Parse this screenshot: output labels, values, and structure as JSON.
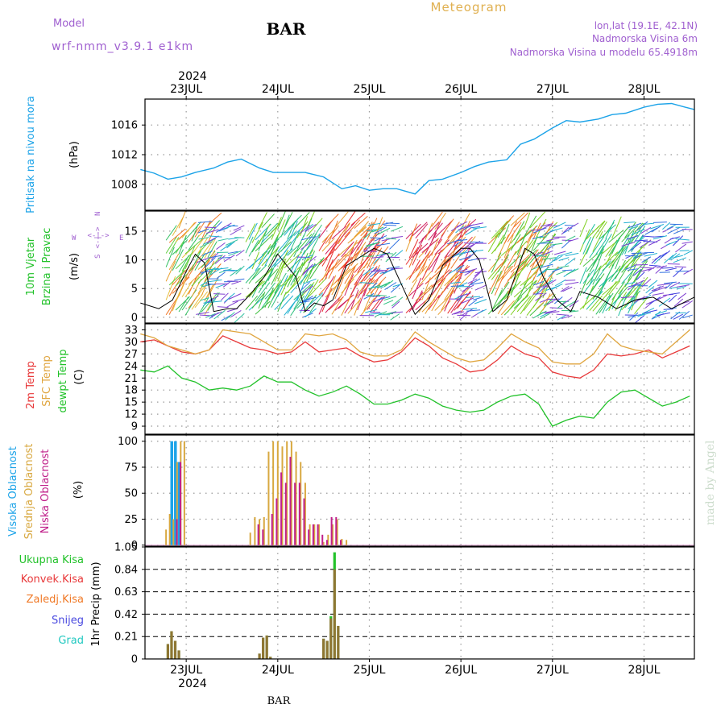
{
  "header": {
    "model_label": "Model",
    "model_name": "wrf-nmm_v3.9.1 e1km",
    "station": "BAR",
    "meteogram_label": "Meteogram",
    "lonlat": "lon,lat (19.1E, 42.1N)",
    "elevation": "Nadmorska Visina 6m",
    "model_elevation": "Nadmorska Visina u modelu 65.4918m",
    "footer_station": "BAR",
    "watermark": "made by Angel"
  },
  "x_axis": {
    "year": "2024",
    "days": [
      "23JUL",
      "24JUL",
      "25JUL",
      "26JUL",
      "27JUL",
      "28JUL"
    ],
    "t_range": [
      -0.45,
      5.55
    ]
  },
  "colors": {
    "pressure": "#1ca3e8",
    "wind_title": "#22c22a",
    "wind_dir": "#a060d0",
    "temp2m": "#e8393a",
    "sfc": "#e0a640",
    "dewpt": "#22c22a",
    "cloud_high": "#1ca3e8",
    "cloud_mid": "#d8a840",
    "cloud_low": "#c0208a",
    "rain_total": "#22c22a",
    "rain_conv": "#e8393a",
    "rain_frozen": "#f07a28",
    "snow": "#4a4ae0",
    "grad": "#20c8c0",
    "axis": "#000000",
    "grid": "#999999"
  },
  "panels": {
    "pressure": {
      "ylabel": "Pritisak na nivou mora",
      "unit": "(hPa)",
      "ylim": [
        1004.5,
        1019.5
      ],
      "ticks": [
        "1008",
        "1012",
        "1016"
      ]
    },
    "wind": {
      "ylabel1": "10m Vjetar",
      "ylabel2": "Brzina i Pravac",
      "unit": "(m/s)",
      "compass_s": "S",
      "compass_w": "W",
      "compass_e": "E",
      "compass_n": "N",
      "compass_arrows": "<-|->",
      "ylim": [
        -1,
        18.5
      ],
      "ticks": [
        "0",
        "5",
        "10",
        "15"
      ]
    },
    "temp": {
      "ylabel_2m": "2m Temp",
      "ylabel_sfc": "SFC Temp",
      "ylabel_dew": "dewpt Temp",
      "unit": "(C)",
      "ylim": [
        7,
        34.5
      ],
      "ticks": [
        "9",
        "12",
        "15",
        "18",
        "21",
        "24",
        "27",
        "30",
        "33"
      ]
    },
    "cloud": {
      "ylabel_high": "Visoka Oblacnost",
      "ylabel_mid": "Srednja Oblacnost",
      "ylabel_low": "Niska Oblacnost",
      "unit": "(%)",
      "ylim": [
        -1,
        106
      ],
      "ticks": [
        "0",
        "25",
        "50",
        "75",
        "100"
      ]
    },
    "precip": {
      "legend_total": "Ukupna Kisa",
      "legend_conv": "Konvek.Kisa",
      "legend_frozen": "Zaledj.Kisa",
      "legend_snow": "Snijeg",
      "legend_grad": "Grad",
      "unit": "1hr Precip (mm)",
      "ylim": [
        0,
        1.05
      ],
      "ticks": [
        "0",
        "0.21",
        "0.42",
        "0.63",
        "0.84",
        "1.05"
      ]
    }
  },
  "chart_data": [
    {
      "type": "line",
      "title": "Pritisak na nivou mora",
      "ylabel": "(hPa)",
      "x": [
        -0.5,
        -0.35,
        -0.2,
        -0.05,
        0.1,
        0.3,
        0.45,
        0.6,
        0.8,
        0.95,
        1.1,
        1.3,
        1.5,
        1.7,
        1.85,
        2.0,
        2.15,
        2.3,
        2.5,
        2.65,
        2.8,
        3.0,
        3.15,
        3.3,
        3.5,
        3.65,
        3.8,
        4.0,
        4.15,
        4.3,
        4.5,
        4.65,
        4.8,
        5.0,
        5.15,
        5.3,
        5.45,
        5.55
      ],
      "y": [
        1010,
        1009.5,
        1008.7,
        1009,
        1009.6,
        1010.2,
        1011,
        1011.4,
        1010.2,
        1009.6,
        1009.6,
        1009.6,
        1009,
        1007.4,
        1007.8,
        1007.2,
        1007.4,
        1007.4,
        1006.7,
        1008.5,
        1008.7,
        1009.6,
        1010.4,
        1011,
        1011.3,
        1013.4,
        1014.1,
        1015.6,
        1016.6,
        1016.4,
        1016.8,
        1017.4,
        1017.6,
        1018.4,
        1018.8,
        1018.9,
        1018.4,
        1018.1
      ]
    },
    {
      "type": "line",
      "title": "10m Vjetar Brzina i Pravac",
      "ylabel": "(m/s)",
      "x": [
        -0.5,
        -0.3,
        -0.15,
        0.0,
        0.1,
        0.2,
        0.3,
        0.45,
        0.55,
        0.7,
        0.85,
        1.0,
        1.2,
        1.3,
        1.4,
        1.5,
        1.6,
        1.75,
        1.9,
        2.05,
        2.2,
        2.4,
        2.5,
        2.65,
        2.8,
        3.0,
        3.1,
        3.2,
        3.35,
        3.5,
        3.7,
        3.8,
        3.9,
        4.05,
        4.2,
        4.3,
        4.5,
        4.7,
        4.9,
        5.1,
        5.3,
        5.55
      ],
      "y": [
        2.5,
        1.5,
        3,
        8,
        11,
        9.5,
        1,
        1.5,
        1.5,
        4,
        7,
        11,
        7,
        1,
        2.5,
        2,
        3,
        9,
        10.5,
        12,
        11,
        4,
        0.5,
        3,
        9,
        12,
        12,
        10,
        1,
        3,
        12,
        11,
        7,
        3,
        1,
        4.5,
        3.5,
        1.5,
        3,
        3.5,
        1.5,
        3.5
      ]
    },
    {
      "type": "line",
      "title": "2m Temp / SFC Temp / dewpt Temp",
      "ylabel": "(C)",
      "x": [
        -0.5,
        -0.35,
        -0.2,
        -0.05,
        0.1,
        0.25,
        0.4,
        0.55,
        0.7,
        0.85,
        1.0,
        1.15,
        1.3,
        1.45,
        1.6,
        1.75,
        1.9,
        2.05,
        2.2,
        2.35,
        2.5,
        2.65,
        2.8,
        2.95,
        3.1,
        3.25,
        3.4,
        3.55,
        3.7,
        3.85,
        4.0,
        4.15,
        4.3,
        4.45,
        4.6,
        4.75,
        4.9,
        5.05,
        5.2,
        5.35,
        5.5
      ],
      "series": [
        {
          "name": "2m Temp",
          "values": [
            30,
            30.5,
            29,
            27.5,
            27,
            28,
            31.5,
            30,
            28.5,
            28,
            27,
            27.5,
            30,
            27.5,
            28,
            28.5,
            26.5,
            25,
            25.5,
            27.5,
            31,
            29,
            26,
            24.5,
            22.5,
            23,
            25.5,
            29,
            27,
            26,
            22.5,
            21.5,
            21,
            23,
            27,
            26.5,
            27,
            28,
            26,
            27.5,
            29
          ]
        },
        {
          "name": "SFC Temp",
          "values": [
            32,
            31,
            29,
            28,
            27,
            28,
            33,
            32.5,
            32,
            30,
            28,
            28,
            32,
            31.5,
            32,
            30.5,
            27.5,
            26.5,
            26.5,
            28,
            32.5,
            30,
            28,
            26,
            25,
            25.5,
            28.5,
            32,
            30,
            28.5,
            25,
            24.5,
            24.5,
            27,
            32,
            29,
            28,
            27.5,
            27,
            30,
            33
          ]
        },
        {
          "name": "dewpt Temp",
          "values": [
            23,
            22.5,
            24,
            21,
            20,
            18,
            18.5,
            18,
            19,
            21.5,
            20,
            20,
            18,
            16.5,
            17.5,
            19,
            17,
            14.5,
            14.5,
            15.5,
            17,
            16,
            14,
            13,
            12.5,
            13,
            15,
            16.5,
            17,
            14.5,
            9,
            10.5,
            11.5,
            11,
            15,
            17.5,
            18,
            16,
            14,
            15,
            16.5
          ]
        }
      ]
    },
    {
      "type": "bar",
      "title": "Visoka / Srednja / Niska Oblacnost",
      "ylabel": "(%)",
      "series": [
        {
          "name": "Visoka Oblacnost",
          "x": [
            -0.14,
            -0.1,
            -0.06
          ],
          "values": [
            100,
            100,
            80
          ]
        },
        {
          "name": "Srednja Oblacnost",
          "x": [
            -0.22,
            -0.18,
            -0.14,
            -0.1,
            -0.06,
            -0.02,
            0.7,
            0.75,
            0.8,
            0.85,
            0.9,
            0.95,
            1.0,
            1.05,
            1.1,
            1.15,
            1.2,
            1.25,
            1.3,
            1.35,
            1.4,
            1.45,
            1.5,
            1.55,
            1.6,
            1.65,
            1.7,
            1.75
          ],
          "values": [
            15,
            30,
            25,
            80,
            100,
            100,
            12,
            27,
            25,
            27,
            90,
            100,
            100,
            95,
            100,
            100,
            90,
            80,
            60,
            20,
            20,
            20,
            3,
            10,
            20,
            25,
            6,
            5
          ]
        },
        {
          "name": "Niska Oblacnost",
          "x": [
            -0.12,
            -0.08,
            0.77,
            0.82,
            0.92,
            0.97,
            1.02,
            1.07,
            1.12,
            1.17,
            1.22,
            1.27,
            1.32,
            1.37,
            1.42,
            1.47,
            1.52,
            1.57,
            1.62,
            1.67
          ],
          "values": [
            25,
            80,
            20,
            15,
            30,
            45,
            70,
            60,
            85,
            60,
            60,
            45,
            15,
            20,
            20,
            10,
            5,
            27,
            27,
            5
          ]
        }
      ]
    },
    {
      "type": "bar",
      "title": "1hr Precip",
      "ylabel": "1hr Precip (mm)",
      "series": [
        {
          "name": "Ukupna Kisa",
          "x": [
            -0.2,
            -0.16,
            -0.12,
            -0.08,
            0.8,
            0.84,
            0.88,
            0.92,
            1.5,
            1.54,
            1.58,
            1.62,
            1.66
          ],
          "values": [
            0.14,
            0.26,
            0.17,
            0.08,
            0.05,
            0.2,
            0.22,
            0.02,
            0.19,
            0.17,
            0.4,
            1.0,
            0.31
          ]
        },
        {
          "name": "Konvek.Kisa",
          "x": [
            -0.2,
            -0.16,
            -0.12,
            -0.08,
            0.8,
            0.84,
            0.88,
            0.92,
            1.5,
            1.54,
            1.58,
            1.62,
            1.66
          ],
          "values": [
            0.14,
            0.26,
            0.17,
            0.08,
            0.05,
            0.2,
            0.22,
            0.02,
            0.19,
            0.17,
            0.38,
            0.84,
            0.31
          ]
        }
      ]
    }
  ]
}
